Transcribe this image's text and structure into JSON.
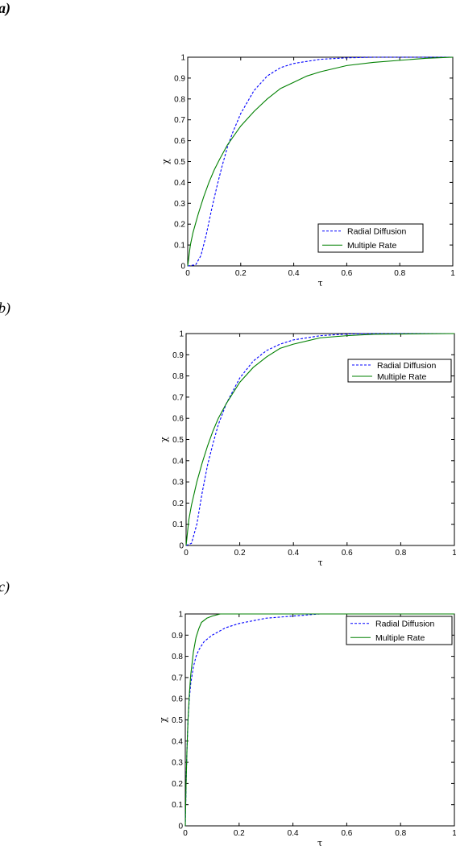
{
  "chart_data": [
    {
      "panel_label": "a)",
      "type": "line",
      "xlabel": "τ",
      "ylabel": "χ",
      "xlim": [
        0,
        1
      ],
      "ylim": [
        0,
        1
      ],
      "xticks": [
        "0",
        "0.2",
        "0.4",
        "0.6",
        "0.8",
        "1"
      ],
      "yticks": [
        "0",
        "0.1",
        "0.2",
        "0.3",
        "0.4",
        "0.5",
        "0.6",
        "0.7",
        "0.8",
        "0.9",
        "1"
      ],
      "legend_position": "lower-right",
      "series": [
        {
          "name": "Radial Diffusion",
          "style": "dashed",
          "color": "#0000ff",
          "points": [
            [
              0,
              0
            ],
            [
              0.03,
              0.005
            ],
            [
              0.05,
              0.05
            ],
            [
              0.07,
              0.15
            ],
            [
              0.09,
              0.27
            ],
            [
              0.11,
              0.38
            ],
            [
              0.13,
              0.48
            ],
            [
              0.15,
              0.57
            ],
            [
              0.17,
              0.64
            ],
            [
              0.2,
              0.73
            ],
            [
              0.25,
              0.84
            ],
            [
              0.3,
              0.91
            ],
            [
              0.35,
              0.95
            ],
            [
              0.4,
              0.97
            ],
            [
              0.45,
              0.98
            ],
            [
              0.5,
              0.99
            ],
            [
              0.6,
              0.997
            ],
            [
              0.7,
              1.0
            ],
            [
              1.0,
              1.0
            ]
          ]
        },
        {
          "name": "Multiple Rate",
          "style": "solid",
          "color": "#008000",
          "points": [
            [
              0,
              0
            ],
            [
              0.01,
              0.1
            ],
            [
              0.02,
              0.16
            ],
            [
              0.04,
              0.25
            ],
            [
              0.06,
              0.33
            ],
            [
              0.08,
              0.4
            ],
            [
              0.1,
              0.46
            ],
            [
              0.12,
              0.51
            ],
            [
              0.15,
              0.58
            ],
            [
              0.2,
              0.67
            ],
            [
              0.25,
              0.74
            ],
            [
              0.3,
              0.8
            ],
            [
              0.35,
              0.85
            ],
            [
              0.4,
              0.88
            ],
            [
              0.45,
              0.91
            ],
            [
              0.5,
              0.93
            ],
            [
              0.6,
              0.96
            ],
            [
              0.7,
              0.975
            ],
            [
              0.8,
              0.985
            ],
            [
              0.9,
              0.995
            ],
            [
              1.0,
              1.0
            ]
          ]
        }
      ]
    },
    {
      "panel_label": "b)",
      "type": "line",
      "xlabel": "τ",
      "ylabel": "χ",
      "xlim": [
        0,
        1
      ],
      "ylim": [
        0,
        1
      ],
      "xticks": [
        "0",
        "0.2",
        "0.4",
        "0.6",
        "0.8",
        "1"
      ],
      "yticks": [
        "0",
        "0.1",
        "0.2",
        "0.3",
        "0.4",
        "0.5",
        "0.6",
        "0.7",
        "0.8",
        "0.9",
        "1"
      ],
      "legend_position": "top-right",
      "series": [
        {
          "name": "Radial Diffusion",
          "style": "dashed",
          "color": "#0000ff",
          "points": [
            [
              0,
              0
            ],
            [
              0.02,
              0.01
            ],
            [
              0.04,
              0.1
            ],
            [
              0.06,
              0.25
            ],
            [
              0.08,
              0.38
            ],
            [
              0.1,
              0.48
            ],
            [
              0.12,
              0.57
            ],
            [
              0.15,
              0.67
            ],
            [
              0.2,
              0.79
            ],
            [
              0.25,
              0.87
            ],
            [
              0.3,
              0.92
            ],
            [
              0.35,
              0.95
            ],
            [
              0.4,
              0.97
            ],
            [
              0.5,
              0.99
            ],
            [
              0.6,
              0.998
            ],
            [
              0.7,
              1.0
            ],
            [
              1.0,
              1.0
            ]
          ]
        },
        {
          "name": "Multiple Rate",
          "style": "solid",
          "color": "#008000",
          "points": [
            [
              0,
              0
            ],
            [
              0.01,
              0.12
            ],
            [
              0.02,
              0.19
            ],
            [
              0.04,
              0.3
            ],
            [
              0.06,
              0.39
            ],
            [
              0.08,
              0.47
            ],
            [
              0.1,
              0.54
            ],
            [
              0.12,
              0.6
            ],
            [
              0.15,
              0.67
            ],
            [
              0.2,
              0.77
            ],
            [
              0.25,
              0.84
            ],
            [
              0.3,
              0.89
            ],
            [
              0.35,
              0.93
            ],
            [
              0.4,
              0.95
            ],
            [
              0.5,
              0.98
            ],
            [
              0.6,
              0.99
            ],
            [
              0.7,
              0.997
            ],
            [
              1.0,
              1.0
            ]
          ]
        }
      ]
    },
    {
      "panel_label": "c)",
      "type": "line",
      "xlabel": "τ",
      "ylabel": "χ",
      "xlim": [
        0,
        1
      ],
      "ylim": [
        0,
        1
      ],
      "xticks": [
        "0",
        "0.2",
        "0.4",
        "0.6",
        "0.8",
        "1"
      ],
      "yticks": [
        "0",
        "0.1",
        "0.2",
        "0.3",
        "0.4",
        "0.5",
        "0.6",
        "0.7",
        "0.8",
        "0.9",
        "1"
      ],
      "legend_position": "top-right",
      "series": [
        {
          "name": "Radial Diffusion",
          "style": "dashed",
          "color": "#0000ff",
          "points": [
            [
              0,
              0
            ],
            [
              0.003,
              0.2
            ],
            [
              0.006,
              0.35
            ],
            [
              0.01,
              0.5
            ],
            [
              0.015,
              0.6
            ],
            [
              0.02,
              0.67
            ],
            [
              0.03,
              0.75
            ],
            [
              0.04,
              0.8
            ],
            [
              0.05,
              0.83
            ],
            [
              0.07,
              0.87
            ],
            [
              0.1,
              0.9
            ],
            [
              0.15,
              0.935
            ],
            [
              0.2,
              0.955
            ],
            [
              0.3,
              0.98
            ],
            [
              0.4,
              0.99
            ],
            [
              0.5,
              1.0
            ],
            [
              1.0,
              1.0
            ]
          ]
        },
        {
          "name": "Multiple Rate",
          "style": "solid",
          "color": "#008000",
          "points": [
            [
              0,
              0
            ],
            [
              0.003,
              0.2
            ],
            [
              0.006,
              0.35
            ],
            [
              0.01,
              0.5
            ],
            [
              0.015,
              0.62
            ],
            [
              0.02,
              0.71
            ],
            [
              0.03,
              0.82
            ],
            [
              0.04,
              0.89
            ],
            [
              0.05,
              0.93
            ],
            [
              0.06,
              0.96
            ],
            [
              0.08,
              0.98
            ],
            [
              0.1,
              0.99
            ],
            [
              0.13,
              1.0
            ],
            [
              1.0,
              1.0
            ]
          ]
        }
      ]
    }
  ]
}
